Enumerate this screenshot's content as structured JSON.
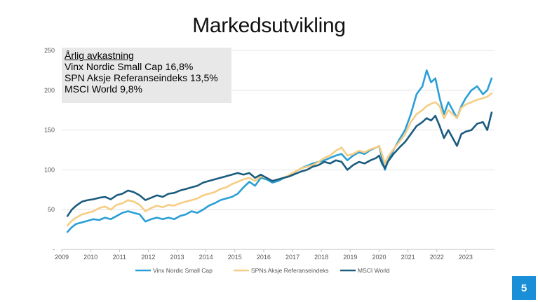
{
  "slide": {
    "title": "Markedsutvikling",
    "page_number": "5"
  },
  "note": {
    "heading": "Årlig avkastning",
    "lines": [
      "Vinx Nordic Small Cap 16,8%",
      "SPN Aksje Referanseindeks 13,5%",
      "MSCI World 9,8%"
    ]
  },
  "chart_data": {
    "type": "line",
    "title": "Markedsutvikling",
    "xlim": [
      2009,
      2024
    ],
    "ylim": [
      0,
      250
    ],
    "x_ticks": [
      2009,
      2010,
      2011,
      2012,
      2013,
      2014,
      2015,
      2016,
      2017,
      2018,
      2019,
      2020,
      2021,
      2022,
      2023
    ],
    "y_ticks": [
      {
        "value": 0,
        "label": "-"
      },
      {
        "value": 50,
        "label": "50"
      },
      {
        "value": 100,
        "label": "100"
      },
      {
        "value": 150,
        "label": "150"
      },
      {
        "value": 200,
        "label": "200"
      },
      {
        "value": 250,
        "label": "250"
      }
    ],
    "grid": true,
    "legend": "bottom",
    "series": [
      {
        "name": "Vinx Nordic Small Cap",
        "color": "#2a9fd6",
        "x": [
          2009.2,
          2009.35,
          2009.5,
          2009.7,
          2009.9,
          2010.1,
          2010.3,
          2010.5,
          2010.7,
          2010.9,
          2011.1,
          2011.3,
          2011.5,
          2011.7,
          2011.9,
          2012.1,
          2012.3,
          2012.5,
          2012.7,
          2012.9,
          2013.1,
          2013.3,
          2013.5,
          2013.7,
          2013.9,
          2014.1,
          2014.3,
          2014.5,
          2014.7,
          2014.9,
          2015.1,
          2015.3,
          2015.5,
          2015.7,
          2015.9,
          2016.1,
          2016.3,
          2016.5,
          2016.7,
          2016.9,
          2017.1,
          2017.3,
          2017.5,
          2017.7,
          2017.9,
          2018.1,
          2018.3,
          2018.5,
          2018.7,
          2018.9,
          2019.1,
          2019.3,
          2019.5,
          2019.7,
          2019.9,
          2020.0,
          2020.1,
          2020.2,
          2020.3,
          2020.5,
          2020.7,
          2020.9,
          2021.1,
          2021.3,
          2021.5,
          2021.65,
          2021.8,
          2021.95,
          2022.1,
          2022.25,
          2022.4,
          2022.55,
          2022.7,
          2022.85,
          2023.0,
          2023.2,
          2023.4,
          2023.6,
          2023.75,
          2023.9
        ],
        "y": [
          22,
          28,
          32,
          34,
          36,
          38,
          37,
          40,
          38,
          42,
          46,
          48,
          46,
          44,
          35,
          38,
          40,
          38,
          40,
          38,
          42,
          44,
          48,
          46,
          50,
          55,
          58,
          62,
          64,
          66,
          70,
          78,
          85,
          80,
          90,
          88,
          84,
          86,
          90,
          92,
          98,
          102,
          105,
          108,
          110,
          112,
          115,
          118,
          120,
          112,
          118,
          122,
          120,
          125,
          128,
          130,
          115,
          100,
          110,
          125,
          138,
          150,
          170,
          195,
          205,
          225,
          210,
          215,
          190,
          170,
          185,
          175,
          165,
          180,
          190,
          200,
          205,
          195,
          200,
          215
        ]
      },
      {
        "name": "SPNs Aksje Referanseindeks",
        "color": "#f6cd83",
        "x": [
          2009.2,
          2009.35,
          2009.5,
          2009.7,
          2009.9,
          2010.1,
          2010.3,
          2010.5,
          2010.7,
          2010.9,
          2011.1,
          2011.3,
          2011.5,
          2011.7,
          2011.9,
          2012.1,
          2012.3,
          2012.5,
          2012.7,
          2012.9,
          2013.1,
          2013.3,
          2013.5,
          2013.7,
          2013.9,
          2014.1,
          2014.3,
          2014.5,
          2014.7,
          2014.9,
          2015.1,
          2015.3,
          2015.5,
          2015.7,
          2015.9,
          2016.1,
          2016.3,
          2016.5,
          2016.7,
          2016.9,
          2017.1,
          2017.3,
          2017.5,
          2017.7,
          2017.9,
          2018.1,
          2018.3,
          2018.5,
          2018.7,
          2018.9,
          2019.1,
          2019.3,
          2019.5,
          2019.7,
          2019.9,
          2020.0,
          2020.1,
          2020.2,
          2020.3,
          2020.5,
          2020.7,
          2020.9,
          2021.1,
          2021.3,
          2021.5,
          2021.65,
          2021.8,
          2021.95,
          2022.1,
          2022.25,
          2022.4,
          2022.55,
          2022.7,
          2022.85,
          2023.0,
          2023.2,
          2023.4,
          2023.6,
          2023.75,
          2023.9
        ],
        "y": [
          30,
          36,
          40,
          44,
          46,
          48,
          52,
          54,
          50,
          56,
          58,
          62,
          60,
          56,
          48,
          52,
          55,
          53,
          56,
          55,
          58,
          60,
          62,
          64,
          68,
          70,
          72,
          76,
          78,
          82,
          85,
          88,
          90,
          86,
          92,
          90,
          86,
          88,
          90,
          94,
          98,
          102,
          104,
          106,
          110,
          115,
          118,
          124,
          128,
          118,
          120,
          124,
          122,
          126,
          128,
          130,
          120,
          108,
          116,
          126,
          135,
          145,
          160,
          170,
          175,
          180,
          183,
          185,
          180,
          165,
          175,
          170,
          165,
          178,
          182,
          185,
          188,
          190,
          192,
          196
        ]
      },
      {
        "name": "MSCI World",
        "color": "#1b5c7e",
        "x": [
          2009.2,
          2009.35,
          2009.5,
          2009.7,
          2009.9,
          2010.1,
          2010.3,
          2010.5,
          2010.7,
          2010.9,
          2011.1,
          2011.3,
          2011.5,
          2011.7,
          2011.9,
          2012.1,
          2012.3,
          2012.5,
          2012.7,
          2012.9,
          2013.1,
          2013.3,
          2013.5,
          2013.7,
          2013.9,
          2014.1,
          2014.3,
          2014.5,
          2014.7,
          2014.9,
          2015.1,
          2015.3,
          2015.5,
          2015.7,
          2015.9,
          2016.1,
          2016.3,
          2016.5,
          2016.7,
          2016.9,
          2017.1,
          2017.3,
          2017.5,
          2017.7,
          2017.9,
          2018.1,
          2018.3,
          2018.5,
          2018.7,
          2018.9,
          2019.1,
          2019.3,
          2019.5,
          2019.7,
          2019.9,
          2020.0,
          2020.1,
          2020.2,
          2020.3,
          2020.5,
          2020.7,
          2020.9,
          2021.1,
          2021.3,
          2021.5,
          2021.65,
          2021.8,
          2021.95,
          2022.1,
          2022.25,
          2022.4,
          2022.55,
          2022.7,
          2022.85,
          2023.0,
          2023.2,
          2023.4,
          2023.6,
          2023.75,
          2023.9
        ],
        "y": [
          42,
          50,
          55,
          60,
          62,
          63,
          65,
          66,
          63,
          68,
          70,
          74,
          72,
          68,
          62,
          65,
          68,
          66,
          70,
          71,
          74,
          76,
          78,
          80,
          84,
          86,
          88,
          90,
          92,
          94,
          96,
          94,
          96,
          90,
          94,
          90,
          86,
          88,
          90,
          92,
          95,
          98,
          100,
          104,
          106,
          110,
          108,
          112,
          110,
          100,
          106,
          110,
          108,
          112,
          115,
          118,
          108,
          102,
          110,
          120,
          128,
          135,
          145,
          155,
          160,
          165,
          162,
          168,
          155,
          140,
          150,
          140,
          130,
          145,
          148,
          150,
          158,
          160,
          150,
          172
        ]
      }
    ]
  }
}
